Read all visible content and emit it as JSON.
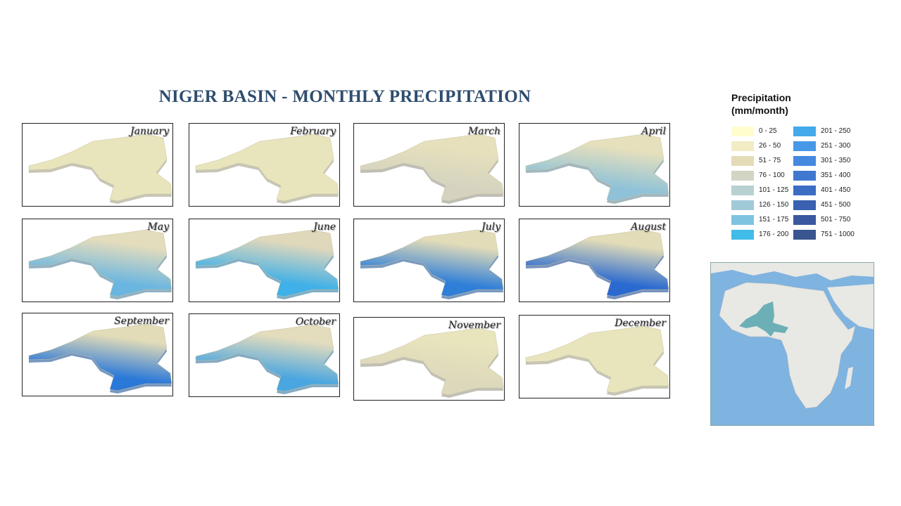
{
  "title": "NIGER BASIN - MONTHLY PRECIPITATION",
  "months": [
    {
      "label": "January",
      "colors": [
        "#e8e4bc",
        "#e8e4bc"
      ]
    },
    {
      "label": "February",
      "colors": [
        "#e8e4bc",
        "#e8e4bc"
      ]
    },
    {
      "label": "March",
      "colors": [
        "#e6e0bc",
        "#d5d3c0"
      ]
    },
    {
      "label": "April",
      "colors": [
        "#e6e0bc",
        "#8fc2d8"
      ]
    },
    {
      "label": "May",
      "colors": [
        "#e3dcbd",
        "#6ab6e0"
      ]
    },
    {
      "label": "June",
      "colors": [
        "#e0d8bb",
        "#3fb0e8"
      ]
    },
    {
      "label": "July",
      "colors": [
        "#e2dcb8",
        "#2f7ed8"
      ]
    },
    {
      "label": "August",
      "colors": [
        "#e2dcb8",
        "#2a6ad0"
      ]
    },
    {
      "label": "September",
      "colors": [
        "#e2dcb8",
        "#2a78d8"
      ]
    },
    {
      "label": "October",
      "colors": [
        "#e3dcbd",
        "#4aa6e0"
      ]
    },
    {
      "label": "November",
      "colors": [
        "#e8e4bc",
        "#dcd8bc"
      ]
    },
    {
      "label": "December",
      "colors": [
        "#e8e4bc",
        "#e8e4bc"
      ]
    }
  ],
  "legend": {
    "title_line1": "Precipitation",
    "title_line2": "(mm/month)",
    "classes": [
      {
        "label": "0 - 25",
        "color": "#fffdd0"
      },
      {
        "label": "26 - 50",
        "color": "#f2edc4"
      },
      {
        "label": "51 - 75",
        "color": "#e4dcb8"
      },
      {
        "label": "76 - 100",
        "color": "#d2d4c4"
      },
      {
        "label": "101 - 125",
        "color": "#b8d0d0"
      },
      {
        "label": "126 - 150",
        "color": "#a0cad8"
      },
      {
        "label": "151 - 175",
        "color": "#7ec4e0"
      },
      {
        "label": "176 - 200",
        "color": "#40bce8"
      },
      {
        "label": "201 - 250",
        "color": "#44aaea"
      },
      {
        "label": "251 - 300",
        "color": "#4898e8"
      },
      {
        "label": "301 - 350",
        "color": "#4488e0"
      },
      {
        "label": "351 - 400",
        "color": "#4078d0"
      },
      {
        "label": "401 - 450",
        "color": "#3c6cc4"
      },
      {
        "label": "451 - 500",
        "color": "#3a60b0"
      },
      {
        "label": "501 - 750",
        "color": "#3a58a0"
      },
      {
        "label": "751 - 1000",
        "color": "#3a5590"
      }
    ]
  },
  "locator": {
    "highlight_color": "#5fa8b0",
    "ocean_color": "#7fb3e0",
    "land_color": "#e8e8e4"
  }
}
